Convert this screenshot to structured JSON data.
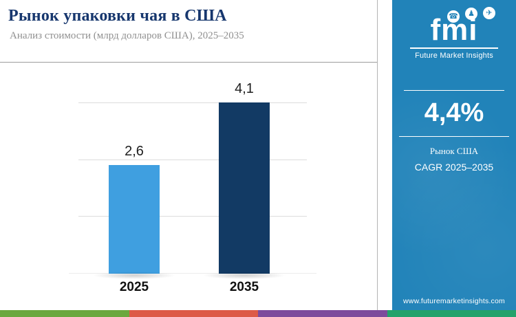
{
  "header": {
    "title": "Рынок упаковки чая в США",
    "subtitle": "Анализ стоимости (млрд долларов США), 2025–2035"
  },
  "chart_data": {
    "type": "bar",
    "title": "Рынок упаковки чая в США",
    "subtitle": "Анализ стоимости (млрд долларов США), 2025–2035",
    "categories": [
      "2025",
      "2035"
    ],
    "values": [
      2.6,
      4.1
    ],
    "value_labels": [
      "2,6",
      "4,1"
    ],
    "unit": "млрд долларов США",
    "ylim": [
      0,
      4.7
    ],
    "grid": true,
    "legend_position": "none",
    "bar_colors": [
      "#3f9fe0",
      "#123a64"
    ]
  },
  "sidebar": {
    "background_color": "#2183b9",
    "logo": {
      "text": "fmi",
      "caption": "Future Market Insights",
      "icons": [
        {
          "name": "phone-icon",
          "glyph": "☎"
        },
        {
          "name": "person-icon",
          "glyph": "♟"
        },
        {
          "name": "plane-icon",
          "glyph": "✈"
        }
      ]
    },
    "stat": {
      "value": "4,4%",
      "label_line1": "Рынок США",
      "label_line2": "CAGR 2025–2035"
    },
    "website": "www.futuremarketinsights.com"
  },
  "footer_strip": {
    "colors": [
      "#6aa83e",
      "#dd5a47",
      "#7d4b9c",
      "#23a26b"
    ]
  }
}
